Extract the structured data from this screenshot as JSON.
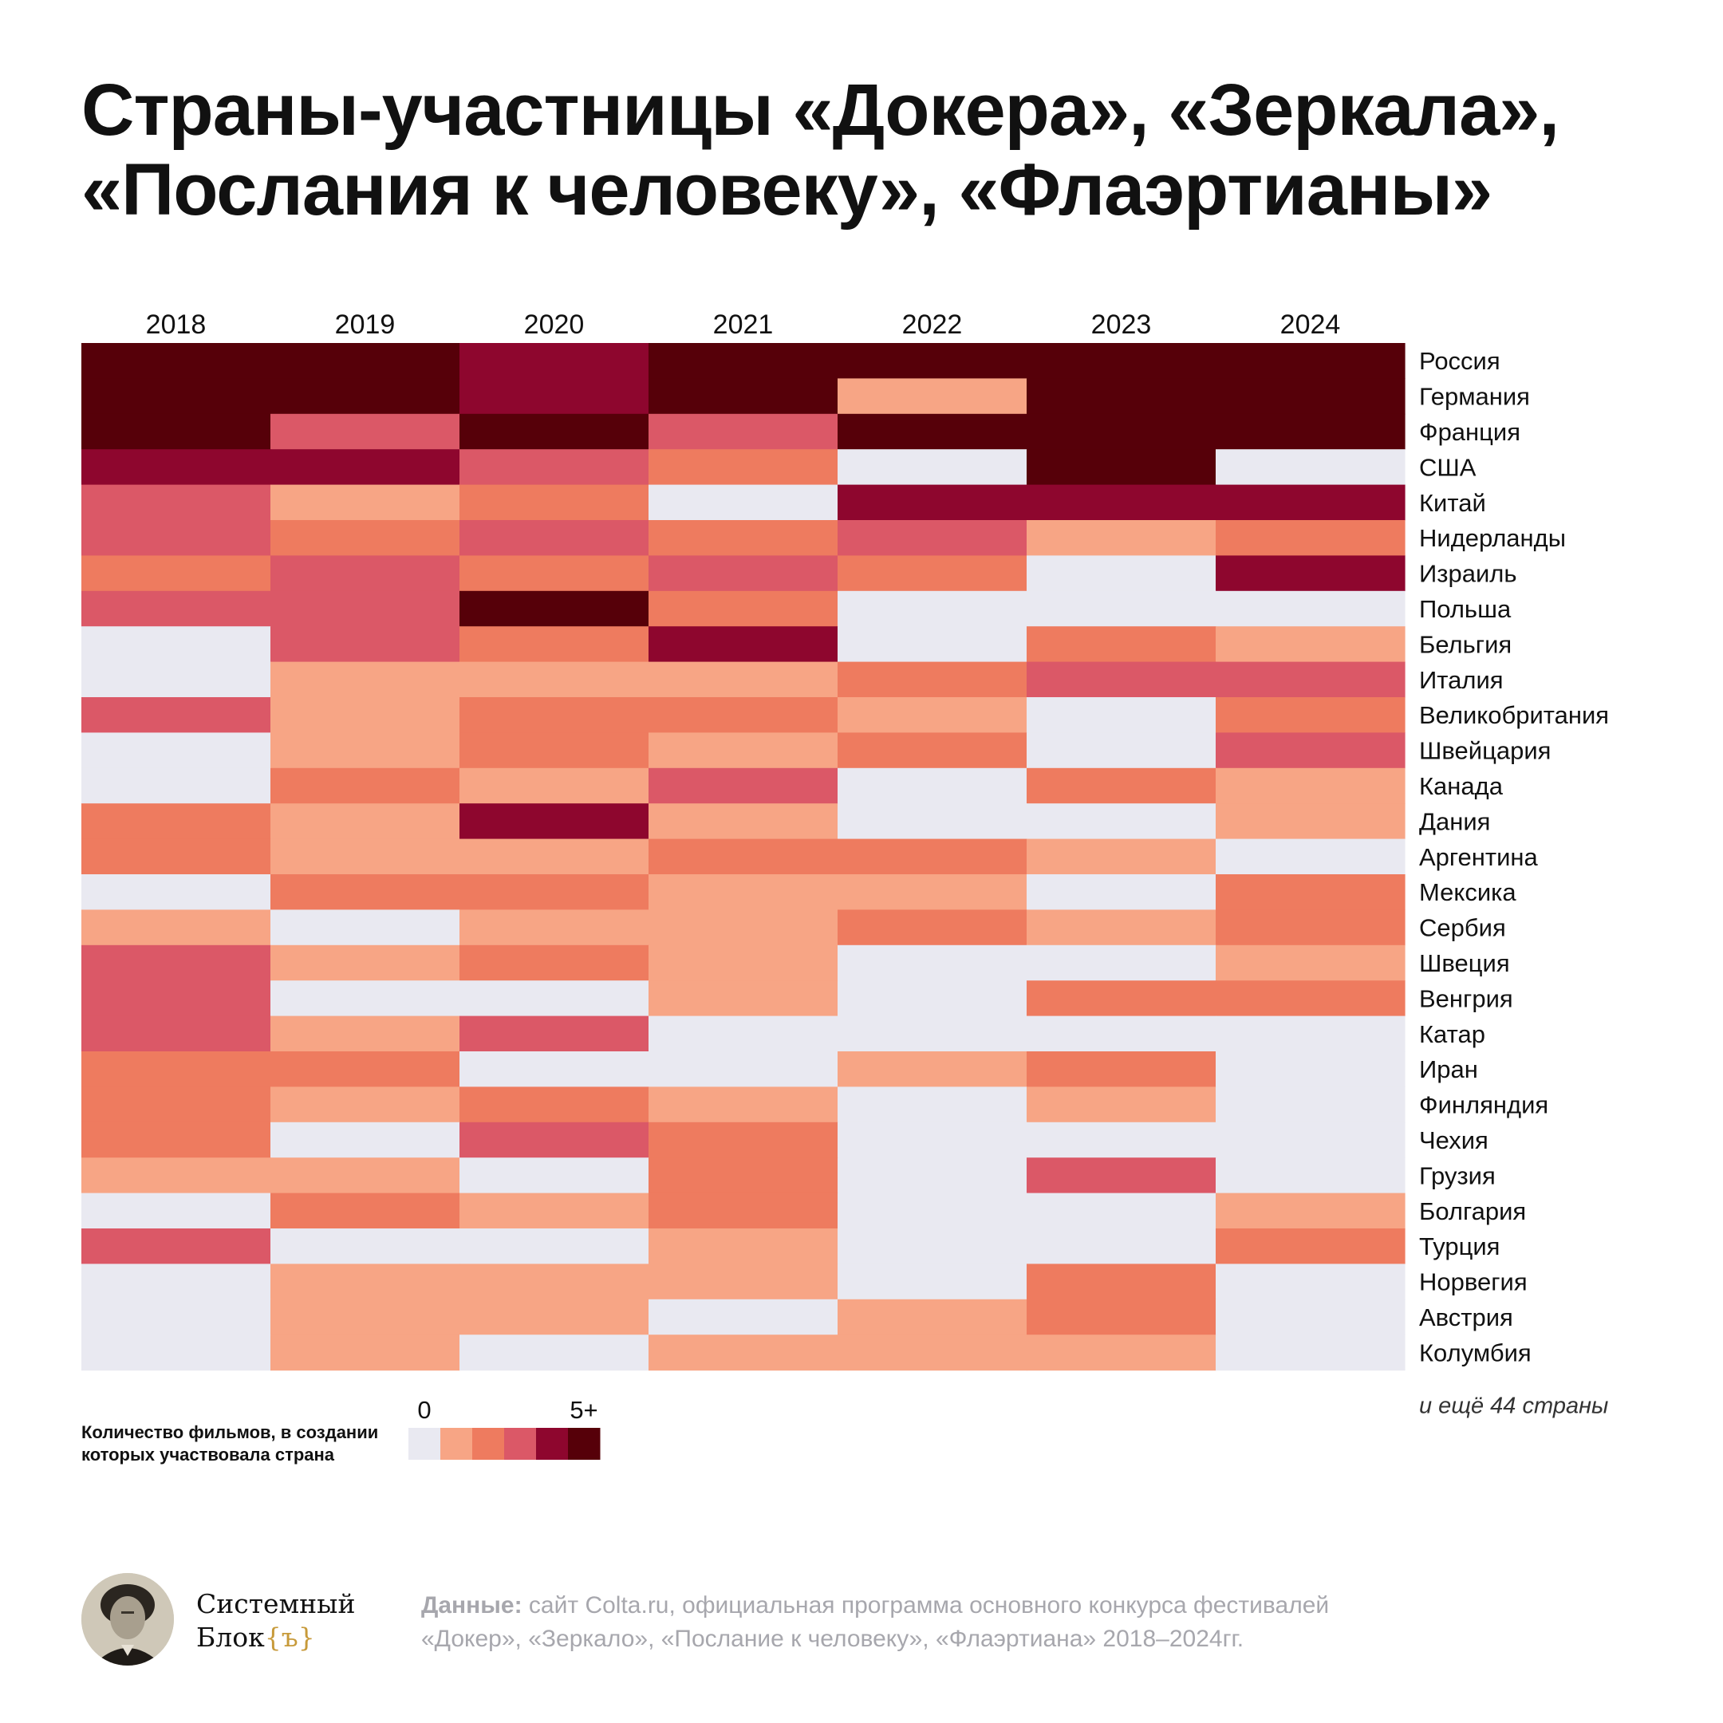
{
  "title": {
    "line1": "Страны-участницы «Докера», «Зеркала»,",
    "line2": "«Послания к человеку», «Флаэртианы»"
  },
  "chart_data": {
    "type": "heatmap",
    "title": "Страны-участницы «Докера», «Зеркала», «Послания к человеку», «Флаэртианы»",
    "columns": [
      "2018",
      "2019",
      "2020",
      "2021",
      "2022",
      "2023",
      "2024"
    ],
    "rows": [
      "Россия",
      "Германия",
      "Франция",
      "США",
      "Китай",
      "Нидерланды",
      "Израиль",
      "Польша",
      "Бельгия",
      "Италия",
      "Великобритания",
      "Швейцария",
      "Канада",
      "Дания",
      "Аргентина",
      "Мексика",
      "Сербия",
      "Швеция",
      "Венгрия",
      "Катар",
      "Иран",
      "Финляндия",
      "Чехия",
      "Грузия",
      "Болгария",
      "Турция",
      "Норвегия",
      "Австрия",
      "Колумбия"
    ],
    "values": [
      [
        5,
        5,
        4,
        5,
        5,
        5,
        5
      ],
      [
        5,
        5,
        4,
        5,
        1,
        5,
        5
      ],
      [
        5,
        3,
        5,
        3,
        5,
        5,
        5
      ],
      [
        4,
        4,
        3,
        2,
        0,
        5,
        0
      ],
      [
        3,
        1,
        2,
        0,
        4,
        4,
        4
      ],
      [
        3,
        2,
        3,
        2,
        3,
        1,
        2
      ],
      [
        2,
        3,
        2,
        3,
        2,
        0,
        4
      ],
      [
        3,
        3,
        5,
        2,
        0,
        0,
        0
      ],
      [
        0,
        3,
        2,
        4,
        0,
        2,
        1
      ],
      [
        0,
        1,
        1,
        1,
        2,
        3,
        3
      ],
      [
        3,
        1,
        2,
        2,
        1,
        0,
        2
      ],
      [
        0,
        1,
        2,
        1,
        2,
        0,
        3
      ],
      [
        0,
        2,
        1,
        3,
        0,
        2,
        1
      ],
      [
        2,
        1,
        4,
        1,
        0,
        0,
        1
      ],
      [
        2,
        1,
        1,
        2,
        2,
        1,
        0
      ],
      [
        0,
        2,
        2,
        1,
        1,
        0,
        2
      ],
      [
        1,
        0,
        1,
        1,
        2,
        1,
        2
      ],
      [
        3,
        1,
        2,
        1,
        0,
        0,
        1
      ],
      [
        3,
        0,
        0,
        1,
        0,
        2,
        2
      ],
      [
        3,
        1,
        3,
        0,
        0,
        0,
        0
      ],
      [
        2,
        2,
        0,
        0,
        1,
        2,
        0
      ],
      [
        2,
        1,
        2,
        1,
        0,
        1,
        0
      ],
      [
        2,
        0,
        3,
        2,
        0,
        0,
        0
      ],
      [
        1,
        1,
        0,
        2,
        0,
        3,
        0
      ],
      [
        0,
        2,
        1,
        2,
        0,
        0,
        1
      ],
      [
        3,
        0,
        0,
        1,
        0,
        0,
        2
      ],
      [
        0,
        1,
        1,
        1,
        0,
        2,
        0
      ],
      [
        0,
        1,
        1,
        0,
        1,
        2,
        0
      ],
      [
        0,
        1,
        0,
        1,
        1,
        1,
        0
      ]
    ],
    "color_scale": [
      "#e9e9f1",
      "#f7a585",
      "#ee7b5f",
      "#db5867",
      "#8e062e",
      "#560009"
    ],
    "more_note": "и ещё 44 страны",
    "legend": {
      "label": "Количество фильмов, в создании которых участвовала страна",
      "min_label": "0",
      "max_label": "5+"
    }
  },
  "footer": {
    "brand_line1": "Системный",
    "brand_line2_text": "Блок",
    "brand_line2_accent": "{ъ}",
    "source_label": "Данные:",
    "source_text_line1": " сайт Colta.ru, официальная программа основного конкурса фестивалей",
    "source_text_line2": "«Докер», «Зеркало», «Послание к человеку», «Флаэртиана» 2018–2024гг."
  }
}
